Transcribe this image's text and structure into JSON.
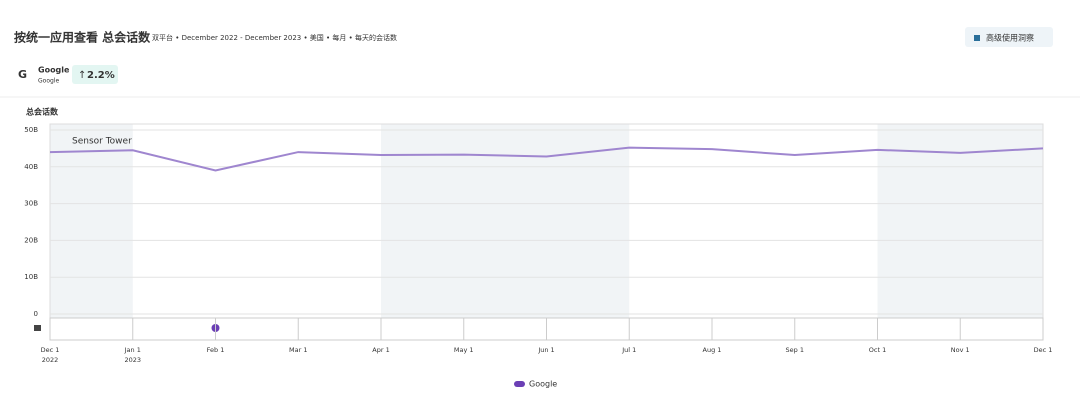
{
  "header": {
    "title": "按统一应用查看 总会话数",
    "subtitle": "双平台 • December 2022 - December 2023 • 美国 • 每月 • 每天的会话数",
    "button": "高级使用洞察"
  },
  "app": {
    "name": "Google",
    "publisher": "Google",
    "change": "2.2%"
  },
  "watermark": "Sensor Tower",
  "chart_data": {
    "type": "line",
    "title": "总会话数",
    "categories": [
      "Dec 1",
      "Jan 1",
      "Feb 1",
      "Mar 1",
      "Apr 1",
      "May 1",
      "Jun 1",
      "Jul 1",
      "Aug 1",
      "Sep 1",
      "Oct 1",
      "Nov 1",
      "Dec 1"
    ],
    "category_years": [
      "2022",
      "2023",
      null,
      null,
      null,
      null,
      null,
      null,
      null,
      null,
      null,
      null,
      null
    ],
    "series": [
      {
        "name": "Google",
        "color": "#9f86cf",
        "values": [
          44000000000,
          44500000000,
          39000000000,
          44000000000,
          43200000000,
          43300000000,
          42800000000,
          45200000000,
          44800000000,
          43200000000,
          44600000000,
          43800000000,
          45000000000
        ]
      }
    ],
    "ylim": [
      0,
      50000000000
    ],
    "yticks": [
      {
        "value": 0,
        "label": "0"
      },
      {
        "value": 10000000000,
        "label": "10B"
      },
      {
        "value": 20000000000,
        "label": "20B"
      },
      {
        "value": 30000000000,
        "label": "30B"
      },
      {
        "value": 40000000000,
        "label": "40B"
      },
      {
        "value": 50000000000,
        "label": "50B"
      }
    ],
    "grid": true,
    "legend": "bottom"
  }
}
